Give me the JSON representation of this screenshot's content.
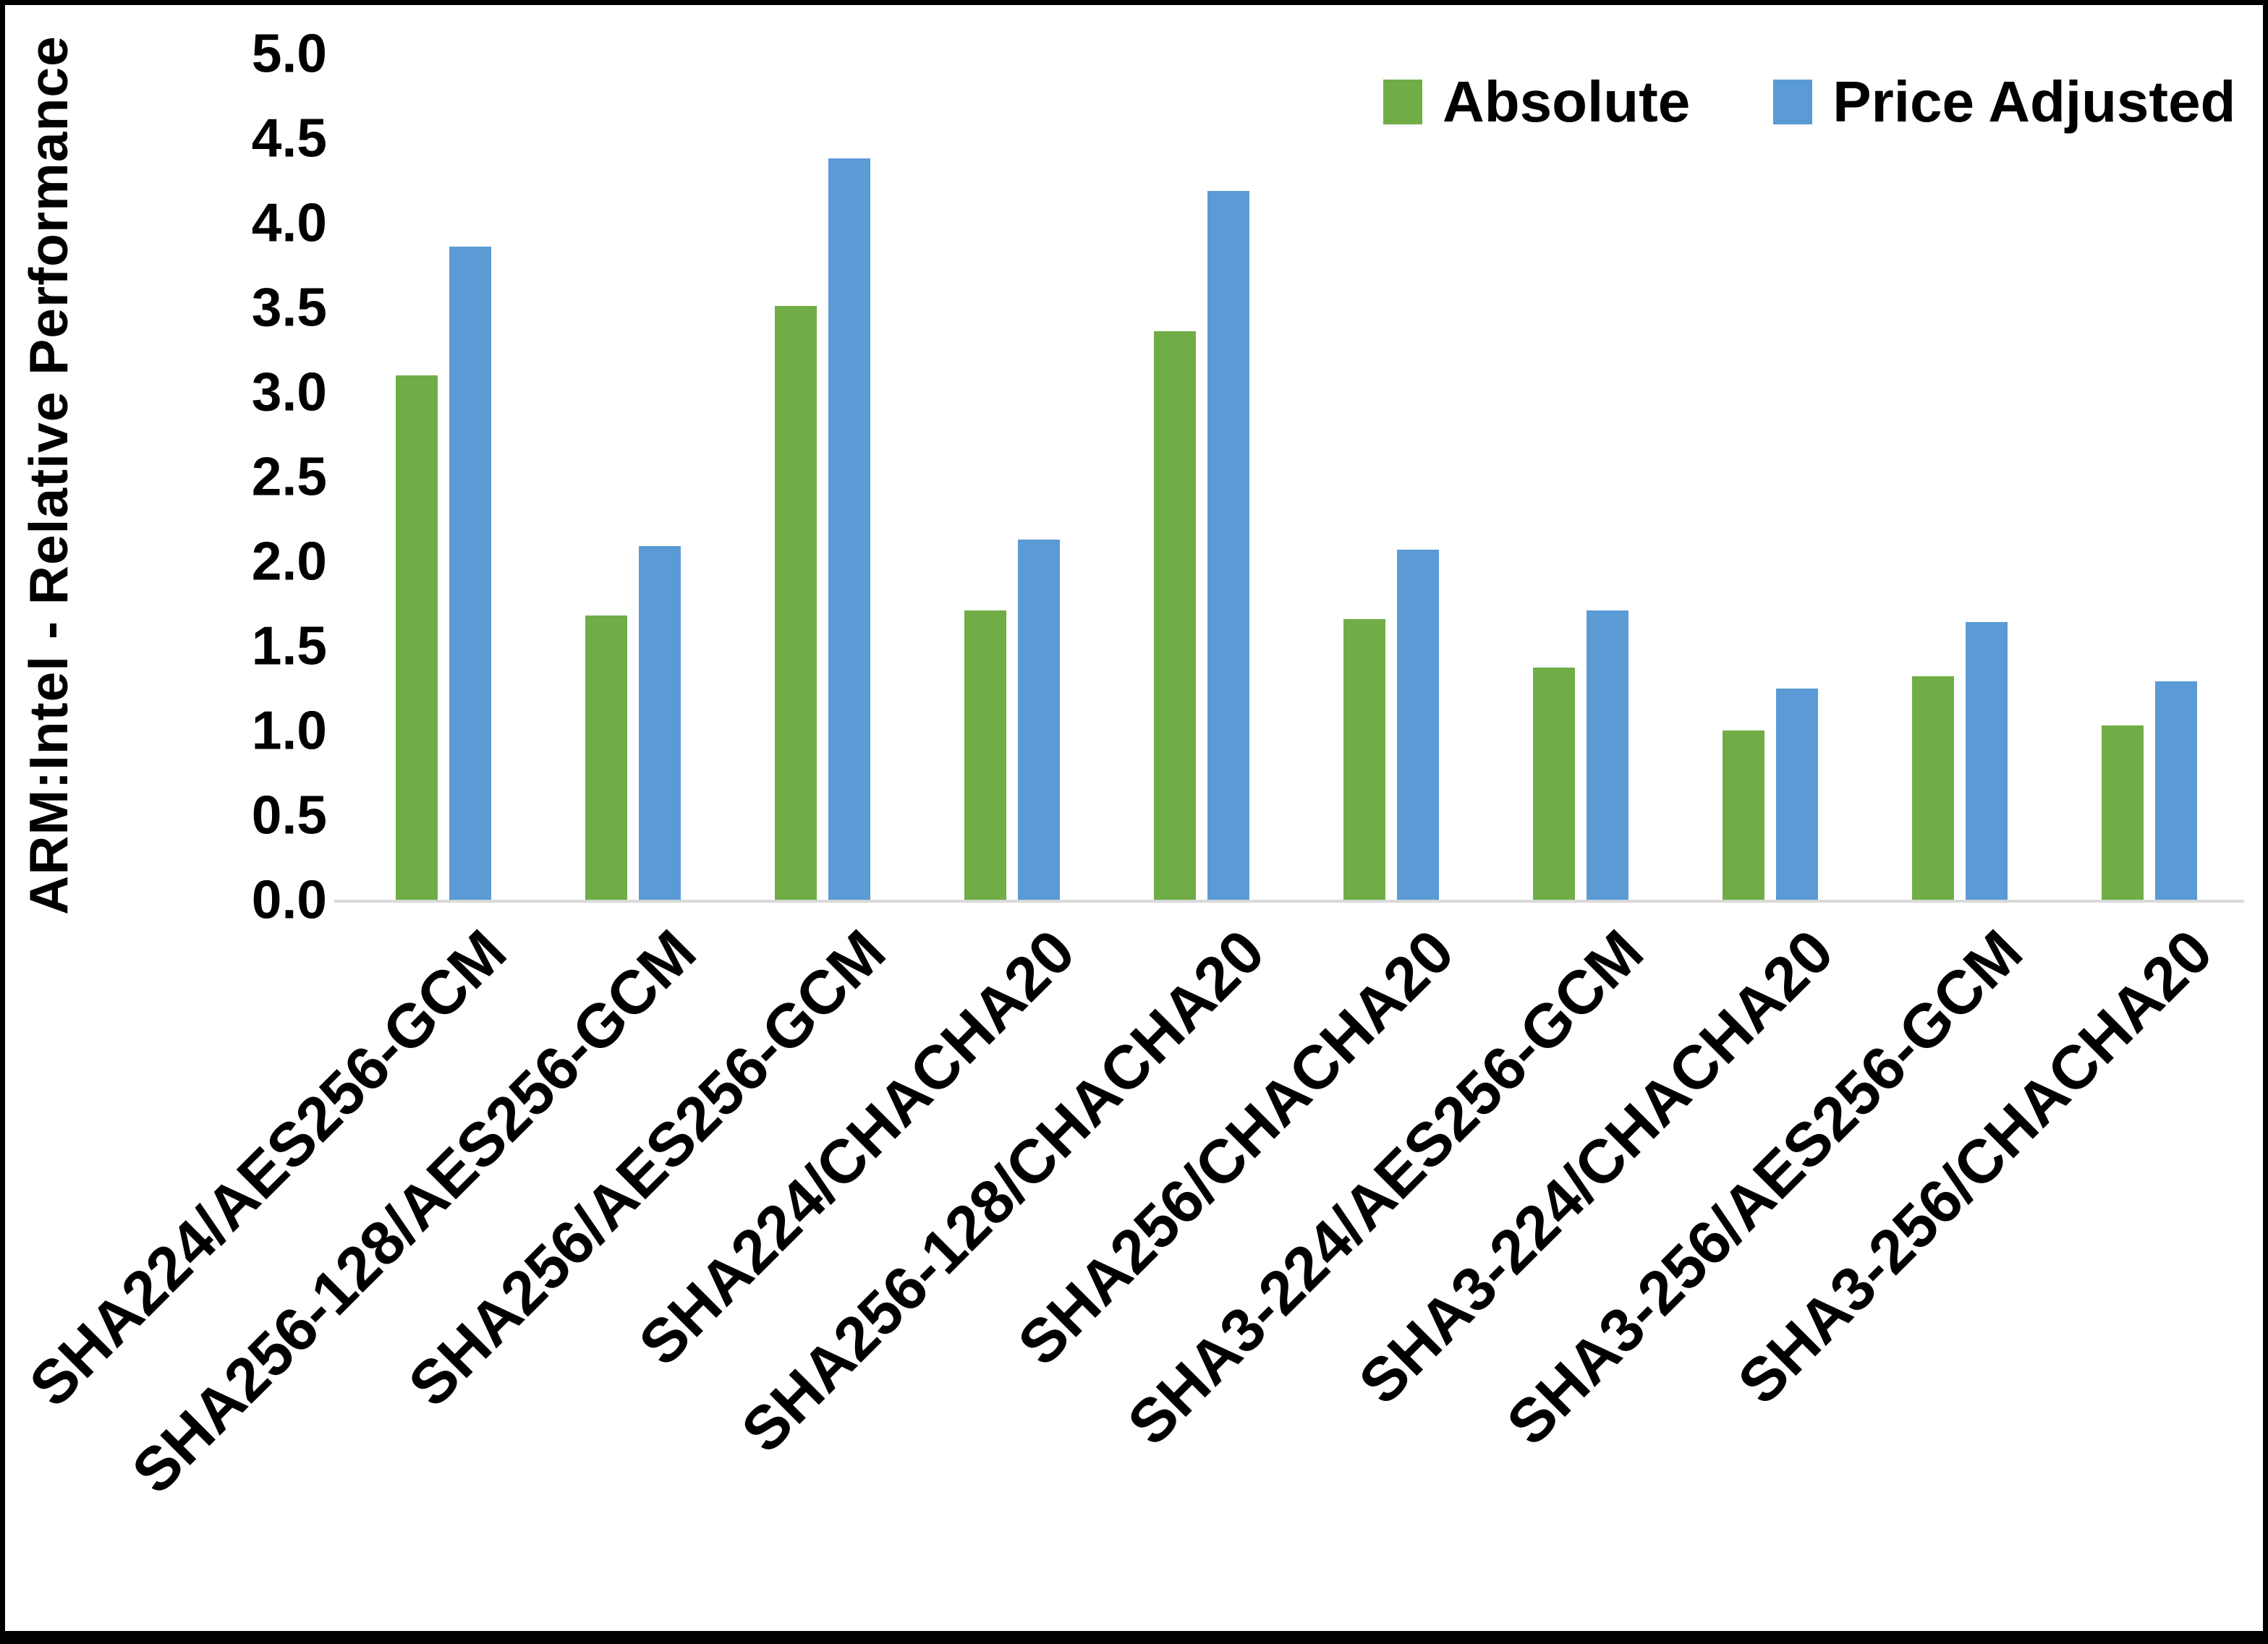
{
  "chart_data": {
    "type": "bar",
    "title": "",
    "xlabel": "",
    "ylabel": "ARM:Intel - Relative Performance",
    "ylim": [
      0,
      5
    ],
    "ytick_step": 0.5,
    "ytick_decimals": 1,
    "grid": false,
    "legend_position": "top-right",
    "axis_line_color": "#d9d9d9",
    "categories": [
      "SHA224/AES256-GCM",
      "SHA256-128/AES256-GCM",
      "SHA256/AES256-GCM",
      "SHA224/CHACHA20",
      "SHA256-128/CHACHA20",
      "SHA256/CHACHA20",
      "SHA3-224/AES256-GCM",
      "SHA3-224/CHACHA20",
      "SHA3-256/AES256-GCM",
      "SHA3-256/CHACHA20"
    ],
    "series": [
      {
        "name": "Absolute",
        "color": "#70ad47",
        "values": [
          3.1,
          1.68,
          3.51,
          1.71,
          3.36,
          1.66,
          1.37,
          1.0,
          1.32,
          1.03
        ]
      },
      {
        "name": "Price Adjusted",
        "color": "#5b9bd5",
        "values": [
          3.86,
          2.09,
          4.38,
          2.13,
          4.19,
          2.07,
          1.71,
          1.25,
          1.64,
          1.29
        ]
      }
    ]
  }
}
